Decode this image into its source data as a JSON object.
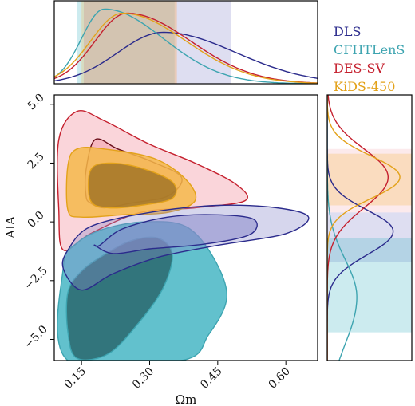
{
  "chart_data": {
    "type": "contour",
    "xlabel": "Ωm",
    "ylabel": "AIA",
    "xlim": [
      0.09,
      0.67
    ],
    "ylim": [
      -5.9,
      5.4
    ],
    "xticks": [
      "0.15",
      "0.30",
      "0.45",
      "0.60"
    ],
    "xtick_values": [
      0.15,
      0.3,
      0.45,
      0.6
    ],
    "yticks": [
      "5.0",
      "2.5",
      "0.0",
      "−2.5",
      "−5.0"
    ],
    "ytick_values": [
      5.0,
      2.5,
      0.0,
      -2.5,
      -5.0
    ],
    "legend_position": "top-right",
    "series": [
      {
        "name": "DLS",
        "color": "#2b2b8c",
        "fill": "#8a8acb",
        "marginal_omega_peak": 0.33,
        "marginal_omega_interval": [
          0.155,
          0.48
        ],
        "marginal_aia_peak": -0.4,
        "marginal_aia_interval": [
          -1.7,
          0.4
        ],
        "contour_68": [
          [
            0.19,
            -1.0
          ],
          [
            0.24,
            -0.3
          ],
          [
            0.34,
            0.2
          ],
          [
            0.45,
            0.3
          ],
          [
            0.53,
            0.1
          ],
          [
            0.52,
            -0.55
          ],
          [
            0.42,
            -0.95
          ],
          [
            0.3,
            -1.15
          ],
          [
            0.22,
            -1.35
          ],
          [
            0.18,
            -1.0
          ]
        ],
        "contour_95": [
          [
            0.12,
            -1.2
          ],
          [
            0.17,
            -0.2
          ],
          [
            0.3,
            0.4
          ],
          [
            0.45,
            0.7
          ],
          [
            0.58,
            0.6
          ],
          [
            0.65,
            0.2
          ],
          [
            0.6,
            -0.5
          ],
          [
            0.45,
            -1.0
          ],
          [
            0.32,
            -1.5
          ],
          [
            0.22,
            -2.2
          ],
          [
            0.15,
            -2.9
          ],
          [
            0.11,
            -2.0
          ]
        ]
      },
      {
        "name": "CFHTLenS",
        "color": "#3da4b0",
        "fill": "#47b6c4",
        "marginal_omega_peak": 0.2,
        "marginal_omega_interval": [
          0.14,
          0.355
        ],
        "marginal_aia_peak": -3.2,
        "marginal_aia_interval": [
          -4.7,
          -0.7
        ],
        "contour_68": [
          [
            0.12,
            -3.0
          ],
          [
            0.15,
            -2.1
          ],
          [
            0.2,
            -1.4
          ],
          [
            0.26,
            -0.8
          ],
          [
            0.32,
            -0.7
          ],
          [
            0.35,
            -1.4
          ],
          [
            0.33,
            -2.8
          ],
          [
            0.28,
            -4.2
          ],
          [
            0.21,
            -5.6
          ],
          [
            0.14,
            -5.8
          ],
          [
            0.12,
            -4.7
          ]
        ],
        "contour_95": [
          [
            0.11,
            -1.9
          ],
          [
            0.14,
            -0.9
          ],
          [
            0.2,
            -0.3
          ],
          [
            0.29,
            0.0
          ],
          [
            0.38,
            -0.2
          ],
          [
            0.44,
            -1.5
          ],
          [
            0.47,
            -3.2
          ],
          [
            0.43,
            -4.8
          ],
          [
            0.37,
            -5.9
          ],
          [
            0.12,
            -5.9
          ]
        ]
      },
      {
        "name": "DES-SV",
        "color": "#c5202e",
        "fill": "#f5b3bc",
        "marginal_omega_peak": 0.25,
        "marginal_omega_interval": [
          0.155,
          0.36
        ],
        "marginal_aia_peak": 1.9,
        "marginal_aia_interval": [
          0.4,
          3.1
        ],
        "contour_68": [
          [
            0.16,
            1.1
          ],
          [
            0.16,
            2.2
          ],
          [
            0.18,
            3.5
          ],
          [
            0.23,
            3.1
          ],
          [
            0.3,
            2.6
          ],
          [
            0.37,
            1.9
          ],
          [
            0.34,
            1.1
          ],
          [
            0.26,
            0.8
          ],
          [
            0.2,
            0.6
          ],
          [
            0.17,
            0.8
          ]
        ],
        "contour_95": [
          [
            0.1,
            3.5
          ],
          [
            0.14,
            4.7
          ],
          [
            0.2,
            4.3
          ],
          [
            0.3,
            3.3
          ],
          [
            0.4,
            2.5
          ],
          [
            0.49,
            1.6
          ],
          [
            0.51,
            0.9
          ],
          [
            0.4,
            0.6
          ],
          [
            0.28,
            0.4
          ],
          [
            0.17,
            -0.5
          ],
          [
            0.11,
            -1.2
          ],
          [
            0.1,
            0.5
          ]
        ]
      },
      {
        "name": "KiDS-450",
        "color": "#e3a21a",
        "fill": "#f4b84a",
        "marginal_omega_peak": 0.24,
        "marginal_omega_interval": [
          0.15,
          0.36
        ],
        "marginal_aia_peak": 1.9,
        "marginal_aia_interval": [
          0.7,
          2.9
        ],
        "contour_68": [
          [
            0.17,
            0.9
          ],
          [
            0.17,
            2.2
          ],
          [
            0.21,
            2.5
          ],
          [
            0.28,
            2.3
          ],
          [
            0.35,
            1.7
          ],
          [
            0.35,
            1.0
          ],
          [
            0.28,
            0.7
          ],
          [
            0.21,
            0.6
          ]
        ],
        "contour_95": [
          [
            0.12,
            0.5
          ],
          [
            0.12,
            2.4
          ],
          [
            0.14,
            3.1
          ],
          [
            0.2,
            3.1
          ],
          [
            0.31,
            2.7
          ],
          [
            0.38,
            1.8
          ],
          [
            0.4,
            0.9
          ],
          [
            0.34,
            0.4
          ],
          [
            0.24,
            0.3
          ],
          [
            0.15,
            0.2
          ]
        ]
      }
    ]
  }
}
